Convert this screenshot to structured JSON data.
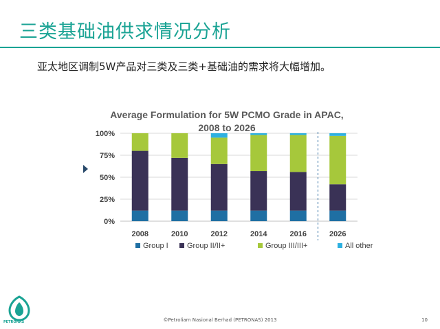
{
  "slide": {
    "title": "三类基础油供求情况分析",
    "subtitle": "亚太地区调制5W产品对三类及三类+基础油的需求将大幅增加。",
    "footer": "©Petroliam Nasional Berhad (PETRONAS) 2013",
    "page_number": "10",
    "logo_text": "PETRONAS",
    "accent_color": "#1aa394"
  },
  "chart_data": {
    "type": "bar",
    "stacked": true,
    "title_line1": "Average Formulation for 5W PCMO Grade in APAC,",
    "title_line2": "2008 to 2026",
    "categories": [
      "2008",
      "2010",
      "2012",
      "2014",
      "2016",
      "2026"
    ],
    "ylim": [
      0,
      100
    ],
    "yticks": [
      "0%",
      "25%",
      "50%",
      "75%",
      "100%"
    ],
    "series": [
      {
        "name": "Group I",
        "color": "#1f6fa3",
        "values": [
          12,
          12,
          12,
          12,
          12,
          12
        ]
      },
      {
        "name": "Group II/II+",
        "color": "#3a3256",
        "values": [
          68,
          60,
          53,
          45,
          44,
          30
        ]
      },
      {
        "name": "Group III/III+",
        "color": "#a6c83b",
        "values": [
          20,
          28,
          30,
          41,
          42,
          55
        ]
      },
      {
        "name": "All other",
        "color": "#2db0e0",
        "values": [
          0,
          0,
          5,
          2,
          2,
          3
        ]
      }
    ],
    "projection_divider_after": "2016",
    "legend_position": "bottom"
  }
}
